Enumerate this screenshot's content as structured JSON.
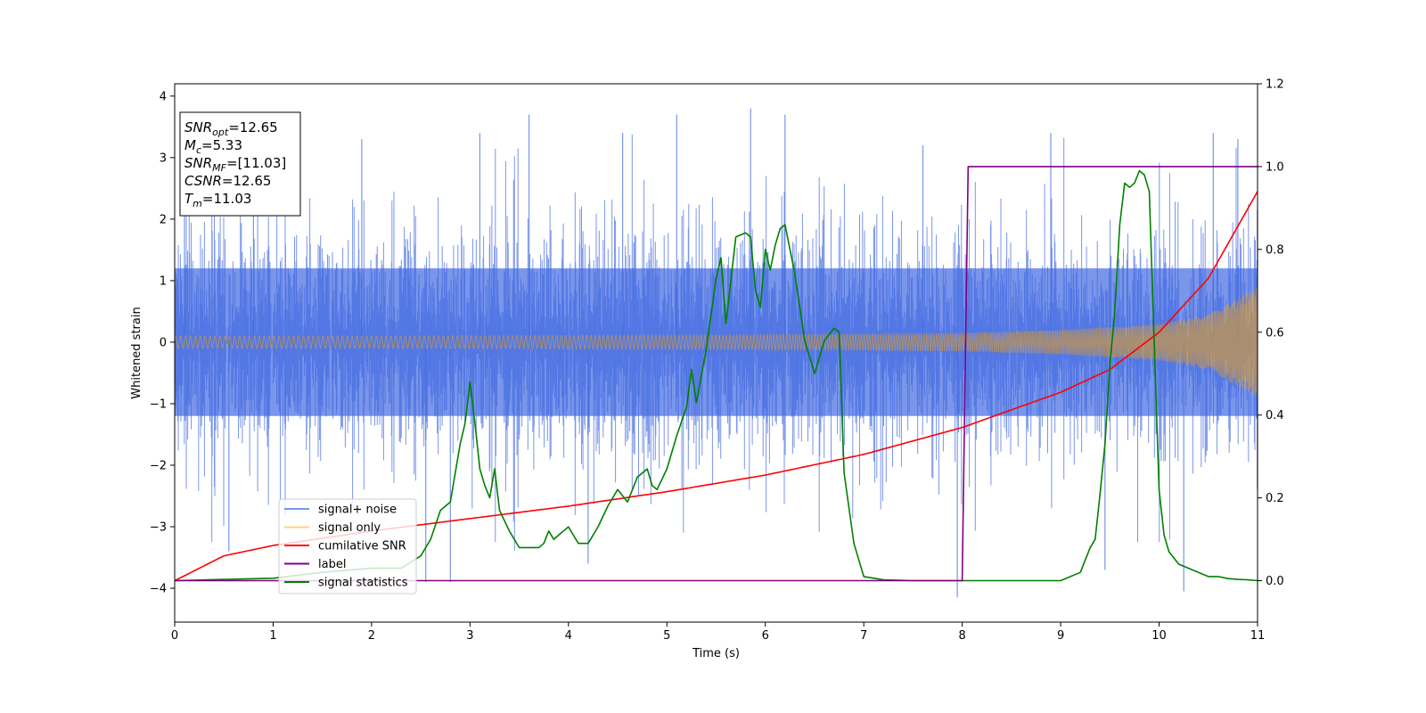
{
  "chart_data": {
    "type": "line",
    "xlabel": "Time (s)",
    "ylabel": "Whitened strain",
    "xlim": [
      0,
      11
    ],
    "ylim": [
      -4.55,
      4.2
    ],
    "y2lim": [
      -0.1,
      1.2
    ],
    "xticks": [
      0,
      1,
      2,
      3,
      4,
      5,
      6,
      7,
      8,
      9,
      10,
      11
    ],
    "yticks": [
      -4,
      -3,
      -2,
      -1,
      0,
      1,
      2,
      3,
      4
    ],
    "y2ticks": [
      0.0,
      0.2,
      0.4,
      0.6,
      0.8,
      1.0,
      1.2
    ],
    "grid": false,
    "legend_position": "lower-left",
    "series": [
      {
        "name": "signal+ noise",
        "axis": "left",
        "color": "#4169e1",
        "opacity": 0.7,
        "kind": "noise-band",
        "typical_range": [
          -2.6,
          2.7
        ],
        "extremes": [
          -4.15,
          3.8
        ]
      },
      {
        "name": "signal only",
        "axis": "left",
        "color": "#ffa500",
        "opacity": 0.5,
        "kind": "chirp",
        "amplitude_envelope": {
          "t": [
            0,
            2,
            4,
            6,
            8,
            9,
            10,
            10.5,
            11
          ],
          "amp": [
            0.1,
            0.1,
            0.11,
            0.12,
            0.15,
            0.2,
            0.3,
            0.45,
            0.9
          ]
        }
      },
      {
        "name": "cumilative SNR",
        "axis": "right",
        "color": "#ff0000",
        "x": [
          0,
          0.5,
          1,
          2,
          3,
          4,
          5,
          6,
          7,
          8,
          9,
          9.5,
          10,
          10.5,
          11
        ],
        "y": [
          0.0,
          0.06,
          0.085,
          0.12,
          0.15,
          0.18,
          0.215,
          0.255,
          0.305,
          0.37,
          0.455,
          0.51,
          0.6,
          0.73,
          0.94
        ]
      },
      {
        "name": "label",
        "axis": "right",
        "color": "#800080",
        "x": [
          0,
          8.0,
          8.06,
          11
        ],
        "y": [
          0,
          0,
          1,
          1
        ]
      },
      {
        "name": "signal statistics",
        "axis": "right",
        "color": "#008000",
        "x": [
          0,
          0.5,
          1.0,
          1.5,
          2.0,
          2.3,
          2.5,
          2.6,
          2.7,
          2.8,
          2.9,
          2.95,
          3.0,
          3.05,
          3.1,
          3.15,
          3.2,
          3.25,
          3.3,
          3.4,
          3.5,
          3.6,
          3.7,
          3.75,
          3.8,
          3.85,
          3.9,
          4.0,
          4.1,
          4.2,
          4.3,
          4.4,
          4.5,
          4.6,
          4.7,
          4.8,
          4.85,
          4.9,
          5.0,
          5.1,
          5.2,
          5.25,
          5.3,
          5.4,
          5.5,
          5.55,
          5.6,
          5.7,
          5.8,
          5.85,
          5.9,
          5.95,
          6.0,
          6.05,
          6.1,
          6.15,
          6.2,
          6.3,
          6.4,
          6.5,
          6.6,
          6.7,
          6.75,
          6.8,
          6.9,
          7.0,
          7.2,
          7.5,
          8.0,
          8.5,
          9.0,
          9.2,
          9.3,
          9.35,
          9.4,
          9.45,
          9.5,
          9.55,
          9.6,
          9.65,
          9.7,
          9.75,
          9.8,
          9.85,
          9.9,
          10.0,
          10.05,
          10.1,
          10.2,
          10.3,
          10.4,
          10.5,
          10.6,
          10.7,
          10.8,
          10.9,
          11.0
        ],
        "y": [
          0.0,
          0.003,
          0.006,
          0.02,
          0.03,
          0.03,
          0.06,
          0.1,
          0.17,
          0.19,
          0.33,
          0.38,
          0.48,
          0.38,
          0.27,
          0.23,
          0.2,
          0.27,
          0.17,
          0.12,
          0.08,
          0.08,
          0.08,
          0.09,
          0.12,
          0.1,
          0.11,
          0.13,
          0.09,
          0.09,
          0.13,
          0.18,
          0.22,
          0.19,
          0.25,
          0.27,
          0.23,
          0.22,
          0.27,
          0.35,
          0.42,
          0.51,
          0.43,
          0.56,
          0.73,
          0.78,
          0.62,
          0.83,
          0.84,
          0.83,
          0.7,
          0.66,
          0.8,
          0.75,
          0.81,
          0.85,
          0.86,
          0.74,
          0.58,
          0.5,
          0.58,
          0.61,
          0.6,
          0.26,
          0.09,
          0.01,
          0.002,
          0.0,
          0.0,
          0.0,
          0.0,
          0.02,
          0.08,
          0.1,
          0.21,
          0.33,
          0.52,
          0.65,
          0.86,
          0.96,
          0.95,
          0.96,
          0.99,
          0.98,
          0.94,
          0.22,
          0.11,
          0.07,
          0.04,
          0.03,
          0.02,
          0.01,
          0.01,
          0.005,
          0.003,
          0.002,
          0.0
        ]
      }
    ],
    "stats_box": [
      {
        "main": "SNR",
        "sub": "opt",
        "rest": "=12.65"
      },
      {
        "main": "M",
        "sub": "c",
        "rest": "=5.33"
      },
      {
        "main": "SNR",
        "sub": "MF",
        "rest": "=[11.03]"
      },
      {
        "main": "CSNR",
        "sub": "",
        "rest": "=12.65"
      },
      {
        "main": "T",
        "sub": "m",
        "rest": "=11.03"
      }
    ]
  }
}
